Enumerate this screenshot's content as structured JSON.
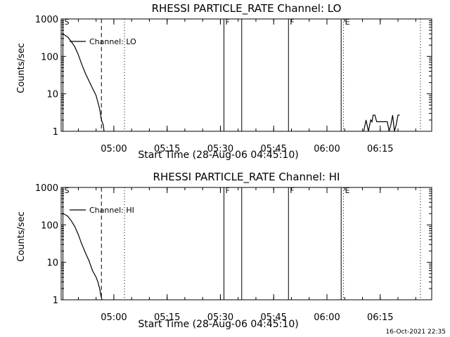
{
  "chart_data": [
    {
      "type": "line",
      "title": "RHESSI PARTICLE_RATE Channel: LO",
      "xlabel": "Start Time (28-Aug-06 04:45:10)",
      "ylabel": "Counts/sec",
      "yscale": "log",
      "ylim": [
        1,
        1000
      ],
      "xlim": [
        "04:45:10",
        "06:29:30"
      ],
      "x_ticks": [
        "05:00",
        "05:15",
        "05:30",
        "05:45",
        "06:00",
        "06:15"
      ],
      "y_ticks": [
        "1",
        "10",
        "100",
        "1000"
      ],
      "legend": {
        "label": "Channel: LO",
        "position": "top-left"
      },
      "grid": false,
      "series": [
        {
          "name": "Channel: LO",
          "segments": [
            {
              "x": [
                "04:45:10",
                "04:46:00",
                "04:47:00",
                "04:48:00",
                "04:49:00",
                "04:50:00",
                "04:51:00",
                "04:52:00",
                "04:53:00",
                "04:54:00",
                "04:55:00",
                "04:55:30",
                "04:56:00",
                "04:56:30",
                "04:57:00",
                "04:57:15"
              ],
              "y": [
                400,
                380,
                330,
                250,
                180,
                110,
                60,
                35,
                22,
                14,
                9,
                6,
                4,
                2,
                1.5,
                1
              ]
            },
            {
              "x": [
                "06:10:20",
                "06:11:00",
                "06:11:40",
                "06:12:20",
                "06:12:40",
                "06:13:00",
                "06:13:30",
                "06:14:00",
                "06:17:00",
                "06:17:30",
                "06:18:00",
                "06:18:30",
                "06:19:00",
                "06:19:30",
                "06:20:00",
                "06:20:30"
              ],
              "y": [
                1,
                2,
                1,
                2,
                1.8,
                2.7,
                2.7,
                1.8,
                1.8,
                1,
                1.5,
                2.7,
                1,
                1.5,
                2.7,
                2.7
              ]
            }
          ]
        }
      ],
      "markers": [
        {
          "time": "04:45:40",
          "style": "solid",
          "label": "S"
        },
        {
          "time": "04:56:30",
          "style": "dashed",
          "label": ""
        },
        {
          "time": "05:03:00",
          "style": "dotted",
          "label": ""
        },
        {
          "time": "05:31:00",
          "style": "solid",
          "label": "F"
        },
        {
          "time": "05:36:00",
          "style": "solid",
          "label": ""
        },
        {
          "time": "05:49:10",
          "style": "solid",
          "label": "F"
        },
        {
          "time": "06:04:00",
          "style": "solid",
          "label": ""
        },
        {
          "time": "06:04:40",
          "style": "dotted",
          "label": "E"
        },
        {
          "time": "06:26:20",
          "style": "dotted",
          "label": ""
        }
      ]
    },
    {
      "type": "line",
      "title": "RHESSI PARTICLE_RATE Channel: HI",
      "xlabel": "Start Time (28-Aug-06 04:45:10)",
      "ylabel": "Counts/sec",
      "yscale": "log",
      "ylim": [
        1,
        1000
      ],
      "xlim": [
        "04:45:10",
        "06:29:30"
      ],
      "x_ticks": [
        "05:00",
        "05:15",
        "05:30",
        "05:45",
        "06:00",
        "06:15"
      ],
      "y_ticks": [
        "1",
        "10",
        "100",
        "1000"
      ],
      "legend": {
        "label": "Channel: HI",
        "position": "top-left"
      },
      "grid": false,
      "series": [
        {
          "name": "Channel: HI",
          "segments": [
            {
              "x": [
                "04:45:10",
                "04:46:00",
                "04:47:00",
                "04:48:00",
                "04:49:00",
                "04:50:00",
                "04:51:00",
                "04:52:00",
                "04:53:00",
                "04:54:00",
                "04:55:00",
                "04:55:30",
                "04:56:00",
                "04:56:20",
                "04:56:40"
              ],
              "y": [
                200,
                195,
                170,
                130,
                90,
                55,
                30,
                18,
                11,
                6,
                4,
                3,
                2,
                1.3,
                1
              ]
            }
          ]
        }
      ],
      "markers": [
        {
          "time": "04:45:40",
          "style": "solid",
          "label": "S"
        },
        {
          "time": "04:56:30",
          "style": "dashed",
          "label": ""
        },
        {
          "time": "05:03:00",
          "style": "dotted",
          "label": ""
        },
        {
          "time": "05:31:00",
          "style": "solid",
          "label": "F"
        },
        {
          "time": "05:36:00",
          "style": "solid",
          "label": ""
        },
        {
          "time": "05:49:10",
          "style": "solid",
          "label": "F"
        },
        {
          "time": "06:04:00",
          "style": "solid",
          "label": ""
        },
        {
          "time": "06:04:40",
          "style": "dotted",
          "label": "E"
        },
        {
          "time": "06:26:20",
          "style": "dotted",
          "label": ""
        }
      ]
    }
  ],
  "footer": {
    "timestamp": "16-Oct-2021 22:35"
  }
}
